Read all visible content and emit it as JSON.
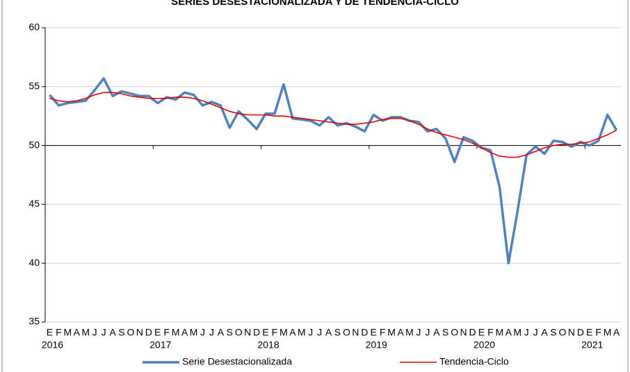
{
  "chart_data": {
    "type": "line",
    "title": "SERIES DESESTACIONALIZADA Y DE TENDENCIA-CICLO",
    "categories": [
      "E",
      "F",
      "M",
      "A",
      "M",
      "J",
      "J",
      "A",
      "S",
      "O",
      "N",
      "D",
      "E",
      "F",
      "M",
      "A",
      "M",
      "J",
      "J",
      "A",
      "S",
      "O",
      "N",
      "D",
      "E",
      "F",
      "M",
      "A",
      "M",
      "J",
      "J",
      "A",
      "S",
      "O",
      "N",
      "D",
      "E",
      "F",
      "M",
      "A",
      "M",
      "J",
      "J",
      "A",
      "S",
      "O",
      "N",
      "D",
      "E",
      "F",
      "M",
      "A",
      "M",
      "J",
      "J",
      "A",
      "S",
      "O",
      "N",
      "D",
      "E",
      "F",
      "M",
      "A"
    ],
    "category_years": [
      "2016",
      null,
      null,
      null,
      null,
      null,
      null,
      null,
      null,
      null,
      null,
      null,
      "2017",
      null,
      null,
      null,
      null,
      null,
      null,
      null,
      null,
      null,
      null,
      null,
      "2018",
      null,
      null,
      null,
      null,
      null,
      null,
      null,
      null,
      null,
      null,
      null,
      "2019",
      null,
      null,
      null,
      null,
      null,
      null,
      null,
      null,
      null,
      null,
      null,
      "2020",
      null,
      null,
      null,
      null,
      null,
      null,
      null,
      null,
      null,
      null,
      null,
      "2021",
      null,
      null,
      null
    ],
    "series": [
      {
        "name": "Serie Desestacionalizada",
        "color": "#4f81bd",
        "values": [
          54.3,
          53.4,
          53.6,
          53.7,
          53.8,
          54.7,
          55.7,
          54.2,
          54.6,
          54.4,
          54.2,
          54.2,
          53.6,
          54.1,
          53.9,
          54.5,
          54.3,
          53.4,
          53.7,
          53.4,
          51.5,
          52.9,
          52.2,
          51.4,
          52.7,
          52.7,
          55.2,
          52.3,
          52.2,
          52.1,
          51.7,
          52.4,
          51.7,
          51.9,
          51.6,
          51.2,
          52.6,
          52.1,
          52.4,
          52.4,
          52.1,
          52.0,
          51.2,
          51.4,
          50.6,
          48.6,
          50.7,
          50.4,
          49.8,
          49.6,
          46.5,
          40.0,
          44.4,
          49.2,
          49.9,
          49.3,
          50.4,
          50.3,
          49.9,
          50.3,
          50.0,
          50.4,
          52.6,
          51.3
        ]
      },
      {
        "name": "Tendencia-Ciclo",
        "color": "#e00000",
        "values": [
          54.0,
          53.8,
          53.7,
          53.8,
          54.0,
          54.3,
          54.5,
          54.5,
          54.4,
          54.2,
          54.1,
          54.0,
          54.0,
          54.0,
          54.1,
          54.1,
          54.0,
          53.8,
          53.5,
          53.2,
          52.9,
          52.7,
          52.6,
          52.6,
          52.6,
          52.5,
          52.5,
          52.4,
          52.3,
          52.2,
          52.1,
          52.0,
          51.9,
          51.8,
          51.8,
          51.9,
          52.0,
          52.2,
          52.3,
          52.3,
          52.1,
          51.8,
          51.4,
          51.1,
          50.9,
          50.7,
          50.5,
          50.2,
          49.8,
          49.4,
          49.1,
          49.0,
          49.0,
          49.2,
          49.5,
          49.8,
          50.0,
          50.1,
          50.1,
          50.2,
          50.3,
          50.6,
          50.9,
          51.3
        ]
      }
    ],
    "ylim": [
      35,
      60
    ],
    "yticks": [
      35,
      40,
      45,
      50,
      55,
      60
    ],
    "x_axis_at": 50,
    "grid": true,
    "legend": "bottom"
  }
}
